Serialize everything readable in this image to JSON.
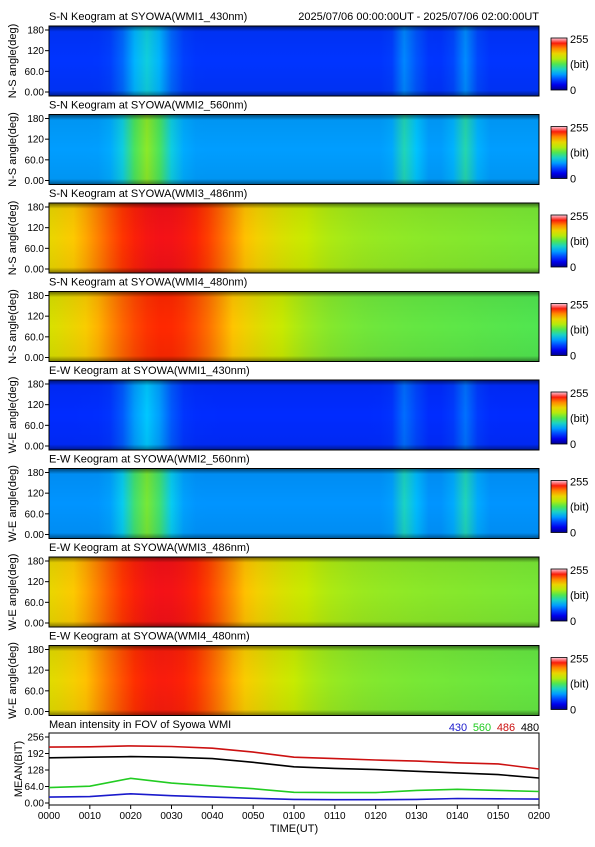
{
  "header": {
    "time_range": "2025/07/06 00:00:00UT - 2025/07/06 02:00:00UT"
  },
  "panels": [
    {
      "title": "S-N Keogram at SYOWA(WMI1_430nm)",
      "ylabel": "N-S angle(deg)",
      "yticks": [
        "180",
        "120",
        "60.0",
        "0.00"
      ],
      "base": 0.18,
      "glowStrength": 0.2,
      "strongEarly": false,
      "lateBands": 0.1
    },
    {
      "title": "S-N Keogram at SYOWA(WMI2_560nm)",
      "ylabel": "N-S angle(deg)",
      "yticks": [
        "180",
        "120",
        "60.0",
        "0.00"
      ],
      "base": 0.3,
      "glowStrength": 0.26,
      "strongEarly": false,
      "lateBands": 0.12
    },
    {
      "title": "S-N Keogram at SYOWA(WMI3_486nm)",
      "ylabel": "N-S angle(deg)",
      "yticks": [
        "180",
        "120",
        "60.0",
        "0.00"
      ],
      "base": 0.62,
      "glowStrength": 0.0,
      "strongEarly": true,
      "lateBands": 0.0
    },
    {
      "title": "S-N Keogram at SYOWA(WMI4_480nm)",
      "ylabel": "N-S angle(deg)",
      "yticks": [
        "180",
        "120",
        "60.0",
        "0.00"
      ],
      "base": 0.58,
      "glowStrength": 0.0,
      "strongEarly": true,
      "lateBands": 0.0
    },
    {
      "title": "E-W Keogram at SYOWA(WMI1_430nm)",
      "ylabel": "W-E angle(deg)",
      "yticks": [
        "180",
        "120",
        "60.0",
        "0.00"
      ],
      "base": 0.17,
      "glowStrength": 0.18,
      "strongEarly": false,
      "lateBands": 0.08
    },
    {
      "title": "E-W Keogram at SYOWA(WMI2_560nm)",
      "ylabel": "W-E angle(deg)",
      "yticks": [
        "180",
        "120",
        "60.0",
        "0.00"
      ],
      "base": 0.29,
      "glowStrength": 0.25,
      "strongEarly": false,
      "lateBands": 0.12
    },
    {
      "title": "E-W Keogram at SYOWA(WMI3_486nm)",
      "ylabel": "W-E angle(deg)",
      "yticks": [
        "180",
        "120",
        "60.0",
        "0.00"
      ],
      "base": 0.62,
      "glowStrength": 0.0,
      "strongEarly": true,
      "lateBands": 0.0
    },
    {
      "title": "E-W Keogram at SYOWA(WMI4_480nm)",
      "ylabel": "W-E angle(deg)",
      "yticks": [
        "180",
        "120",
        "60.0",
        "0.00"
      ],
      "base": 0.6,
      "glowStrength": 0.0,
      "strongEarly": true,
      "lateBands": 0.0
    }
  ],
  "colorbar": {
    "max_label": "255",
    "unit_label": "(bit)",
    "min_label": "0"
  },
  "chart_data": {
    "type": "line",
    "title": "Mean intensity in FOV of Syowa WMI",
    "xlabel": "TIME(UT)",
    "ylabel": "MEAN(BIT)",
    "ylim": [
      0,
      256
    ],
    "yticks": [
      "256",
      "192",
      "128",
      "64.0",
      "0.00"
    ],
    "xticks": [
      "0000",
      "0010",
      "0020",
      "0030",
      "0040",
      "0050",
      "0100",
      "0110",
      "0120",
      "0130",
      "0140",
      "0150",
      "0200"
    ],
    "x": [
      0,
      10,
      20,
      30,
      40,
      50,
      60,
      70,
      80,
      90,
      100,
      110,
      120
    ],
    "legend_placement": "top-right",
    "series": [
      {
        "name": "430",
        "color": "#1a1acc",
        "values": [
          28,
          30,
          40,
          33,
          28,
          24,
          20,
          19,
          19,
          20,
          23,
          22,
          21
        ]
      },
      {
        "name": "560",
        "color": "#22cc22",
        "values": [
          62,
          67,
          95,
          78,
          68,
          58,
          45,
          44,
          44,
          52,
          56,
          52,
          48
        ]
      },
      {
        "name": "486",
        "color": "#cc1111",
        "values": [
          206,
          207,
          210,
          208,
          202,
          188,
          170,
          165,
          160,
          156,
          150,
          146,
          128
        ]
      },
      {
        "name": "480",
        "color": "#000000",
        "values": [
          168,
          170,
          172,
          170,
          165,
          152,
          136,
          130,
          126,
          120,
          114,
          108,
          96
        ]
      }
    ]
  }
}
